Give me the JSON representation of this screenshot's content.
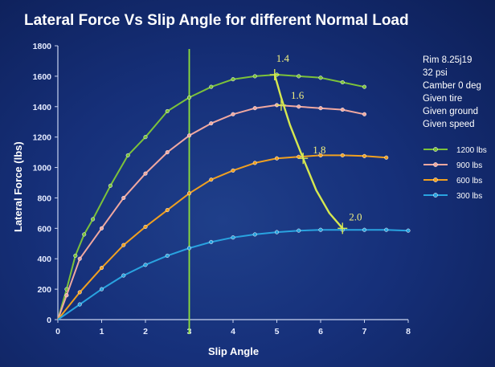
{
  "chart_data": {
    "type": "line",
    "title": "Lateral Force Vs Slip Angle for different Normal Load",
    "xlabel": "Slip Angle",
    "ylabel": "Lateral Force (lbs)",
    "xlim": [
      0,
      8
    ],
    "ylim": [
      0,
      1800
    ],
    "xticks": [
      "0",
      "1",
      "2",
      "3",
      "4",
      "5",
      "6",
      "7",
      "8"
    ],
    "yticks": [
      "0",
      "200",
      "400",
      "600",
      "800",
      "1000",
      "1200",
      "1400",
      "1600",
      "1800"
    ],
    "grid": false,
    "legend_position": "right",
    "series": [
      {
        "name": "1200 lbs",
        "color": "#7cc23a",
        "x": [
          0,
          0.2,
          0.4,
          0.6,
          0.8,
          1.2,
          1.6,
          2.0,
          2.5,
          3.0,
          3.5,
          4.0,
          4.5,
          5.0,
          5.5,
          6.0,
          6.5,
          7.0
        ],
        "y": [
          0,
          200,
          420,
          560,
          660,
          880,
          1080,
          1200,
          1370,
          1460,
          1530,
          1580,
          1600,
          1610,
          1600,
          1590,
          1560,
          1530
        ]
      },
      {
        "name": "900 lbs",
        "color": "#f0a8a0",
        "x": [
          0,
          0.2,
          0.5,
          1.0,
          1.5,
          2.0,
          2.5,
          3.0,
          3.5,
          4.0,
          4.5,
          5.0,
          5.5,
          6.0,
          6.5,
          7.0
        ],
        "y": [
          0,
          160,
          400,
          600,
          800,
          960,
          1100,
          1210,
          1290,
          1350,
          1390,
          1410,
          1400,
          1390,
          1380,
          1350
        ]
      },
      {
        "name": "600 lbs",
        "color": "#f0a020",
        "x": [
          0,
          0.5,
          1.0,
          1.5,
          2.0,
          2.5,
          3.0,
          3.5,
          4.0,
          4.5,
          5.0,
          5.5,
          6.0,
          6.5,
          7.0,
          7.5
        ],
        "y": [
          0,
          180,
          340,
          490,
          610,
          720,
          830,
          920,
          980,
          1030,
          1060,
          1070,
          1080,
          1080,
          1075,
          1065
        ]
      },
      {
        "name": "300 lbs",
        "color": "#29a3e0",
        "x": [
          0,
          0.5,
          1.0,
          1.5,
          2.0,
          2.5,
          3.0,
          3.5,
          4.0,
          4.5,
          5.0,
          5.5,
          6.0,
          6.5,
          7.0,
          7.5,
          8.0
        ],
        "y": [
          0,
          100,
          200,
          290,
          360,
          420,
          470,
          510,
          540,
          560,
          575,
          585,
          590,
          590,
          590,
          590,
          585
        ]
      }
    ],
    "reference_line": {
      "x": 3,
      "color": "#8fe03a"
    },
    "peak_curve": {
      "color": "#d6e850",
      "x": [
        4.95,
        5.1,
        5.3,
        5.6,
        5.9,
        6.2,
        6.5
      ],
      "y": [
        1610,
        1460,
        1280,
        1060,
        850,
        700,
        600
      ],
      "labels": [
        {
          "text": "1.4",
          "x": 4.95,
          "y": 1610
        },
        {
          "text": "1.6",
          "x": 5.1,
          "y": 1410
        },
        {
          "text": "1.8",
          "x": 5.6,
          "y": 1060
        },
        {
          "text": "2.0",
          "x": 6.5,
          "y": 600
        }
      ]
    },
    "info_text": [
      "Rim 8.25j19",
      "32 psi",
      "Camber 0 deg",
      "Given tire",
      "Given ground",
      "Given speed"
    ]
  }
}
